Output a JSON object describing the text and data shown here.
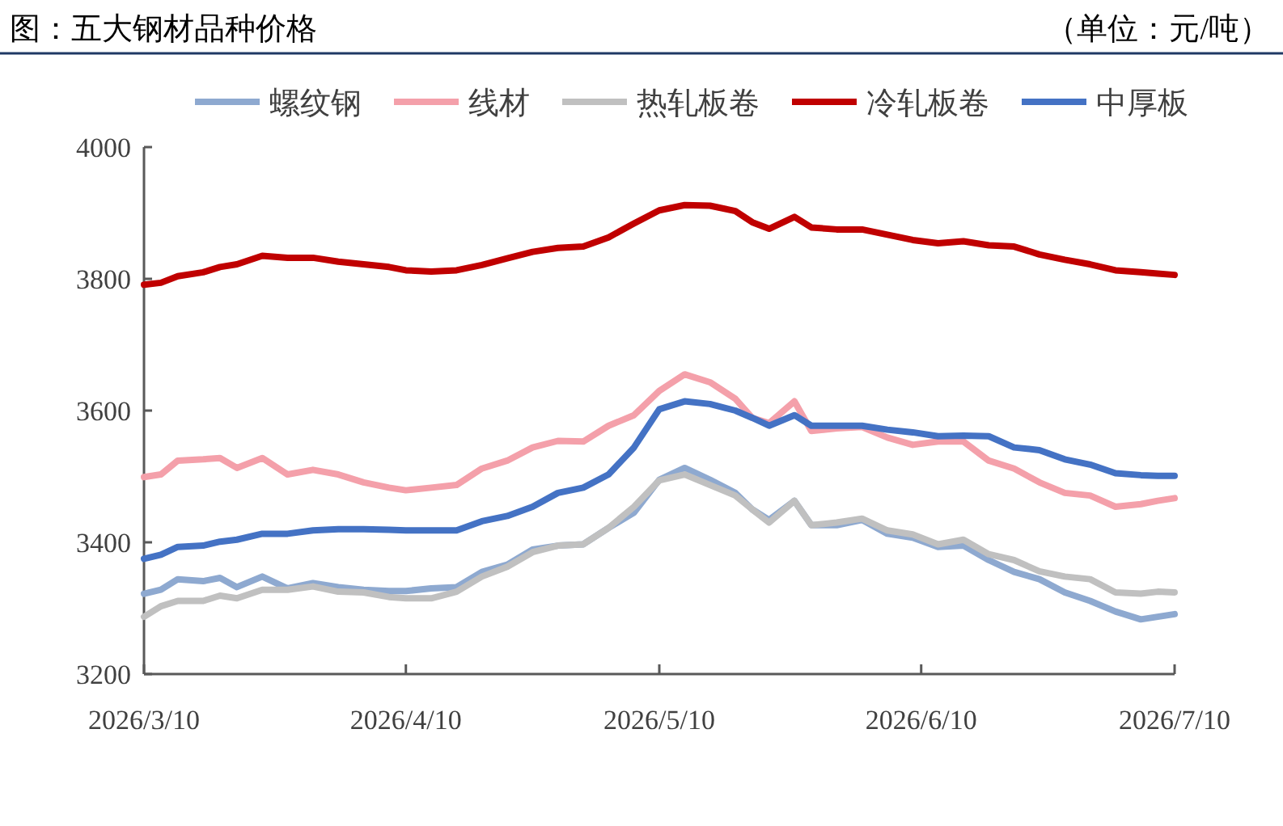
{
  "chart_data": {
    "type": "line",
    "title": "图：五大钢材品种价格",
    "subtitle": "（单位：元/吨）",
    "x": [
      "2026-03-10",
      "2026-03-12",
      "2026-03-14",
      "2026-03-17",
      "2026-03-19",
      "2026-03-21",
      "2026-03-24",
      "2026-03-27",
      "2026-03-30",
      "2026-04-02",
      "2026-04-05",
      "2026-04-08",
      "2026-04-10",
      "2026-04-13",
      "2026-04-16",
      "2026-04-19",
      "2026-04-22",
      "2026-04-25",
      "2026-04-28",
      "2026-05-01",
      "2026-05-04",
      "2026-05-07",
      "2026-05-10",
      "2026-05-13",
      "2026-05-16",
      "2026-05-19",
      "2026-05-21",
      "2026-05-23",
      "2026-05-26",
      "2026-05-28",
      "2026-05-31",
      "2026-06-03",
      "2026-06-06",
      "2026-06-09",
      "2026-06-12",
      "2026-06-15",
      "2026-06-18",
      "2026-06-21",
      "2026-06-24",
      "2026-06-27",
      "2026-06-30",
      "2026-07-03",
      "2026-07-06",
      "2026-07-08",
      "2026-07-10"
    ],
    "series": [
      {
        "name": "螺纹钢",
        "color": "#8ea9d0",
        "values": [
          3322,
          3328,
          3344,
          3341,
          3346,
          3332,
          3348,
          3330,
          3338,
          3332,
          3328,
          3326,
          3326,
          3330,
          3332,
          3355,
          3366,
          3389,
          3395,
          3397,
          3422,
          3445,
          3495,
          3513,
          3495,
          3475,
          3450,
          3434,
          3463,
          3426,
          3426,
          3434,
          3413,
          3407,
          3393,
          3395,
          3373,
          3355,
          3344,
          3324,
          3311,
          3295,
          3283,
          3287,
          3291
        ]
      },
      {
        "name": "线材",
        "color": "#f4a0aa",
        "values": [
          3499,
          3503,
          3524,
          3526,
          3528,
          3513,
          3528,
          3503,
          3510,
          3503,
          3491,
          3483,
          3479,
          3483,
          3487,
          3512,
          3524,
          3544,
          3554,
          3553,
          3577,
          3593,
          3630,
          3655,
          3643,
          3618,
          3589,
          3581,
          3614,
          3569,
          3573,
          3575,
          3559,
          3548,
          3553,
          3553,
          3524,
          3512,
          3491,
          3475,
          3471,
          3454,
          3458,
          3463,
          3467
        ]
      },
      {
        "name": "热轧板卷",
        "color": "#c0c0c0",
        "values": [
          3287,
          3303,
          3311,
          3311,
          3319,
          3315,
          3328,
          3328,
          3333,
          3325,
          3324,
          3317,
          3315,
          3315,
          3325,
          3348,
          3363,
          3385,
          3395,
          3397,
          3422,
          3454,
          3494,
          3503,
          3487,
          3471,
          3450,
          3430,
          3463,
          3426,
          3430,
          3436,
          3418,
          3412,
          3397,
          3404,
          3382,
          3373,
          3356,
          3348,
          3344,
          3324,
          3322,
          3325,
          3324
        ]
      },
      {
        "name": "冷轧板卷",
        "color": "#c00000",
        "values": [
          3791,
          3794,
          3804,
          3810,
          3818,
          3822,
          3835,
          3832,
          3832,
          3826,
          3822,
          3818,
          3813,
          3811,
          3813,
          3821,
          3831,
          3841,
          3847,
          3849,
          3863,
          3884,
          3904,
          3912,
          3911,
          3903,
          3886,
          3876,
          3894,
          3878,
          3875,
          3875,
          3867,
          3859,
          3854,
          3857,
          3851,
          3849,
          3837,
          3829,
          3822,
          3813,
          3810,
          3808,
          3806
        ]
      },
      {
        "name": "中厚板",
        "color": "#4472c4",
        "values": [
          3375,
          3381,
          3393,
          3395,
          3401,
          3404,
          3413,
          3413,
          3418,
          3420,
          3420,
          3419,
          3418,
          3418,
          3418,
          3432,
          3440,
          3454,
          3475,
          3483,
          3503,
          3544,
          3602,
          3614,
          3610,
          3600,
          3589,
          3577,
          3593,
          3577,
          3577,
          3577,
          3571,
          3567,
          3561,
          3562,
          3561,
          3544,
          3540,
          3526,
          3518,
          3505,
          3502,
          3501,
          3501
        ]
      }
    ],
    "xlim": [
      "2026-03-10",
      "2026-07-10"
    ],
    "xticks": [
      {
        "value": "2026-03-10",
        "label": "2026/3/10"
      },
      {
        "value": "2026-04-10",
        "label": "2026/4/10"
      },
      {
        "value": "2026-05-10",
        "label": "2026/5/10"
      },
      {
        "value": "2026-06-10",
        "label": "2026/6/10"
      },
      {
        "value": "2026-07-10",
        "label": "2026/7/10"
      }
    ],
    "ylim": [
      3200,
      4000
    ],
    "yticks": [
      3200,
      3400,
      3600,
      3800,
      4000
    ],
    "legend": "top",
    "grid": false,
    "marker": "none",
    "line_style": "solid"
  }
}
